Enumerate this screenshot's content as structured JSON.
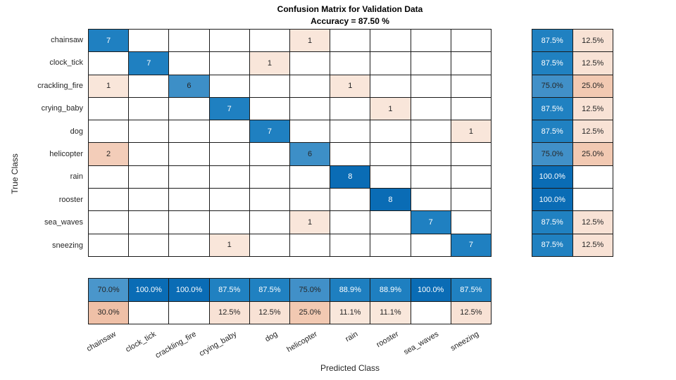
{
  "chart_data": {
    "type": "heatmap",
    "subtype": "confusion-matrix",
    "title": "Confusion Matrix for Validation Data",
    "subtitle": "Accuracy = 87.50 %",
    "xlabel": "Predicted Class",
    "ylabel": "True Class",
    "classes": [
      "chainsaw",
      "clock_tick",
      "crackling_fire",
      "crying_baby",
      "dog",
      "helicopter",
      "rain",
      "rooster",
      "sea_waves",
      "sneezing"
    ],
    "matrix": [
      [
        7,
        0,
        0,
        0,
        0,
        1,
        0,
        0,
        0,
        0
      ],
      [
        0,
        7,
        0,
        0,
        1,
        0,
        0,
        0,
        0,
        0
      ],
      [
        1,
        0,
        6,
        0,
        0,
        0,
        1,
        0,
        0,
        0
      ],
      [
        0,
        0,
        0,
        7,
        0,
        0,
        0,
        1,
        0,
        0
      ],
      [
        0,
        0,
        0,
        0,
        7,
        0,
        0,
        0,
        0,
        1
      ],
      [
        2,
        0,
        0,
        0,
        0,
        6,
        0,
        0,
        0,
        0
      ],
      [
        0,
        0,
        0,
        0,
        0,
        0,
        8,
        0,
        0,
        0
      ],
      [
        0,
        0,
        0,
        0,
        0,
        0,
        0,
        8,
        0,
        0
      ],
      [
        0,
        0,
        0,
        0,
        0,
        1,
        0,
        0,
        7,
        0
      ],
      [
        0,
        0,
        0,
        1,
        0,
        0,
        0,
        0,
        0,
        7
      ]
    ],
    "row_summary": [
      [
        "87.5%",
        "12.5%"
      ],
      [
        "87.5%",
        "12.5%"
      ],
      [
        "75.0%",
        "25.0%"
      ],
      [
        "87.5%",
        "12.5%"
      ],
      [
        "87.5%",
        "12.5%"
      ],
      [
        "75.0%",
        "25.0%"
      ],
      [
        "100.0%",
        ""
      ],
      [
        "100.0%",
        ""
      ],
      [
        "87.5%",
        "12.5%"
      ],
      [
        "87.5%",
        "12.5%"
      ]
    ],
    "col_summary": [
      [
        "70.0%",
        "30.0%"
      ],
      [
        "100.0%",
        ""
      ],
      [
        "100.0%",
        ""
      ],
      [
        "87.5%",
        "12.5%"
      ],
      [
        "87.5%",
        "12.5%"
      ],
      [
        "75.0%",
        "25.0%"
      ],
      [
        "88.9%",
        "11.1%"
      ],
      [
        "88.9%",
        "11.1%"
      ],
      [
        "100.0%",
        ""
      ],
      [
        "87.5%",
        "12.5%"
      ]
    ],
    "colors": {
      "diag": {
        "6": "#3d8fc7",
        "7": "#1f80c1",
        "8": "#0a6cb5"
      },
      "offdiag": {
        "1": "#f9e6da",
        "2": "#f3cdb9"
      },
      "pct_blue": {
        "70.0%": "#4a96cb",
        "75.0%": "#4190c8",
        "87.5%": "#2081c1",
        "88.9%": "#1e7fc0",
        "100.0%": "#0a6cb5"
      },
      "pct_pink": {
        "11.1%": "#f9e7db",
        "12.5%": "#f8e2d5",
        "25.0%": "#f2c9b2",
        "30.0%": "#efc0a7"
      },
      "white_text": [
        "7",
        "8",
        "87.5%",
        "88.9%",
        "100.0%"
      ],
      "grid_line": "#1a1a1a",
      "text_dark": "#262626",
      "text_light": "#ffffff"
    }
  }
}
